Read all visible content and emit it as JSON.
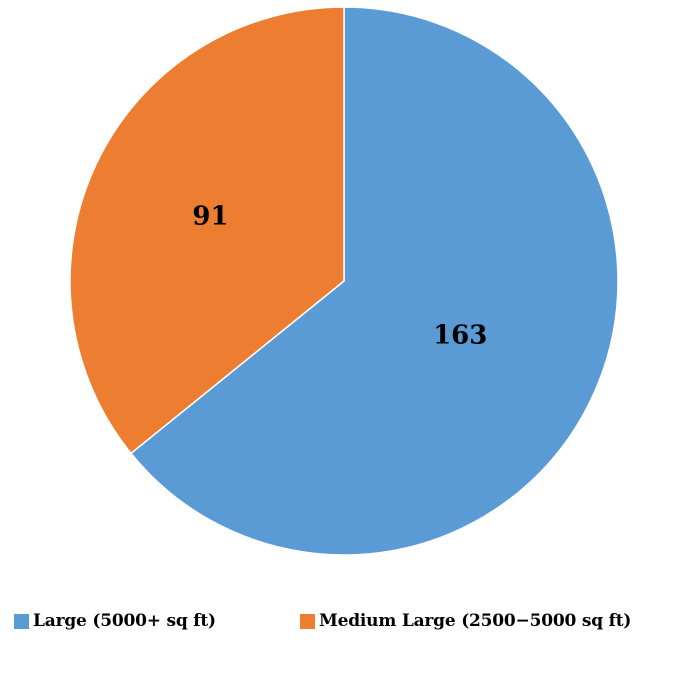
{
  "chart_data": {
    "type": "pie",
    "categories": [
      "Large (5000+ sq ft)",
      "Medium Large (2500−5000 sq ft)"
    ],
    "values": [
      163,
      91
    ],
    "data_labels": [
      "163",
      "91"
    ],
    "colors": [
      "#5B9BD5",
      "#ED7D31"
    ],
    "start_angle": "12 o'clock, clockwise",
    "legend_position": "bottom",
    "title": ""
  }
}
